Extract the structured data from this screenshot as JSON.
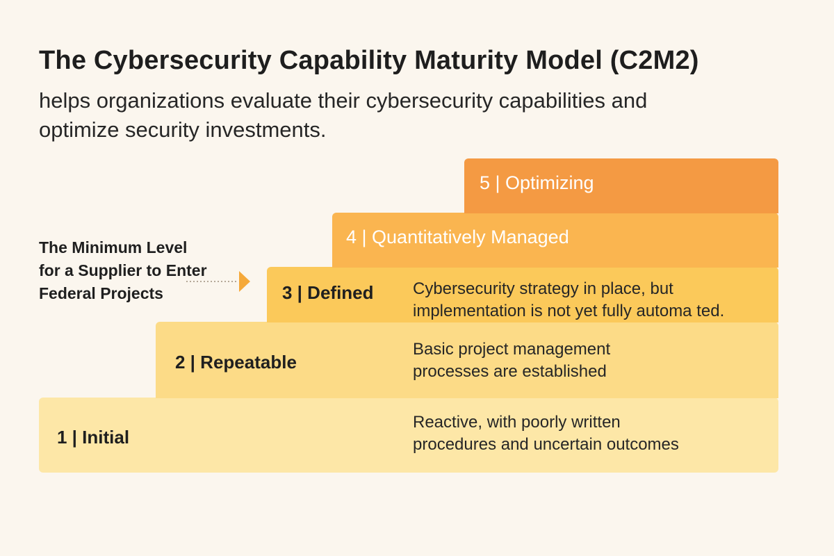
{
  "title": "The Cybersecurity Capability Maturity Model (C2M2)",
  "subtitle": "helps organizations evaluate their cybersecurity capabilities and optimize security investments.",
  "side_note": "The Minimum Level for a Supplier to Enter Federal Projects",
  "levels": [
    {
      "label": "1 | Initial",
      "description": "Reactive, with poorly written procedures and uncertain outcomes",
      "color": "#fde7a7"
    },
    {
      "label": "2 | Repeatable",
      "description": "Basic project management processes are established",
      "color": "#fcdb87"
    },
    {
      "label": "3 | Defined",
      "description": "Cybersecurity strategy in place, but implementation is not yet fully automa ted.",
      "color": "#fbc95a"
    },
    {
      "label": "4 | Quantitatively Managed",
      "description": "",
      "color": "#fab550"
    },
    {
      "label": "5 | Optimizing",
      "description": "",
      "color": "#f49a43"
    }
  ],
  "colors": {
    "background": "#fbf6ee",
    "pointer": "#f5a93a"
  }
}
